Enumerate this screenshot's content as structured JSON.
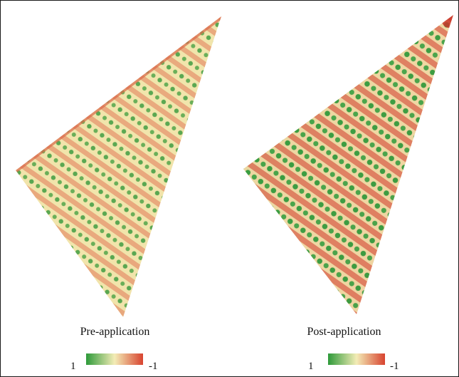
{
  "panels": [
    {
      "label": "Pre-application",
      "legend": {
        "min_label": "1",
        "max_label": "-1"
      }
    },
    {
      "label": "Post-application",
      "legend": {
        "min_label": "1",
        "max_label": "-1"
      }
    }
  ],
  "colors": {
    "high": "#2e9a3a",
    "mid": "#f3ecb6",
    "low": "#d8432f",
    "frame": "#1a1a1a"
  }
}
